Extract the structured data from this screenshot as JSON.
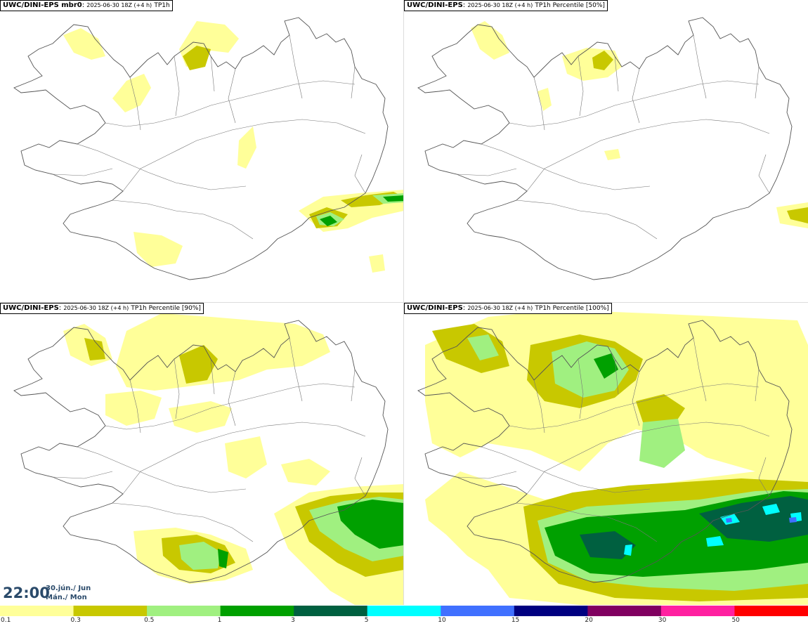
{
  "panels": [
    {
      "model": "UWC/DINI-EPS mbr0",
      "run": "2025-06-30 18Z (+4 h)",
      "param": "TP1h"
    },
    {
      "model": "UWC/DINI-EPS",
      "run": "2025-06-30 18Z (+4 h)",
      "param": "TP1h Percentile [50%]"
    },
    {
      "model": "UWC/DINI-EPS",
      "run": "2025-06-30 18Z (+4 h)",
      "param": "TP1h Percentile [90%]"
    },
    {
      "model": "UWC/DINI-EPS",
      "run": "2025-06-30 18Z (+4 h)",
      "param": "TP1h Percentile [100%]"
    }
  ],
  "valid_time": {
    "time": "22:00",
    "date_line1": "30.jún./ Jun",
    "date_line2": "Mán./ Mon"
  },
  "legend": {
    "ticks": [
      "0.1",
      "0.3",
      "0.5",
      "1",
      "3",
      "5",
      "10",
      "15",
      "20",
      "30",
      "50"
    ],
    "colors": [
      "#ffff99",
      "#c8c800",
      "#a0f080",
      "#00a000",
      "#006040",
      "#00ffff",
      "#4070ff",
      "#000080",
      "#800060",
      "#ff20a0",
      "#ff0000"
    ]
  },
  "colors": {
    "coast": "#555555",
    "level_01": "#ffff99",
    "level_03": "#c8c800",
    "level_05": "#a0f080",
    "level_1": "#00a000",
    "level_3": "#006040",
    "level_5": "#00ffff",
    "level_10": "#4070ff"
  }
}
